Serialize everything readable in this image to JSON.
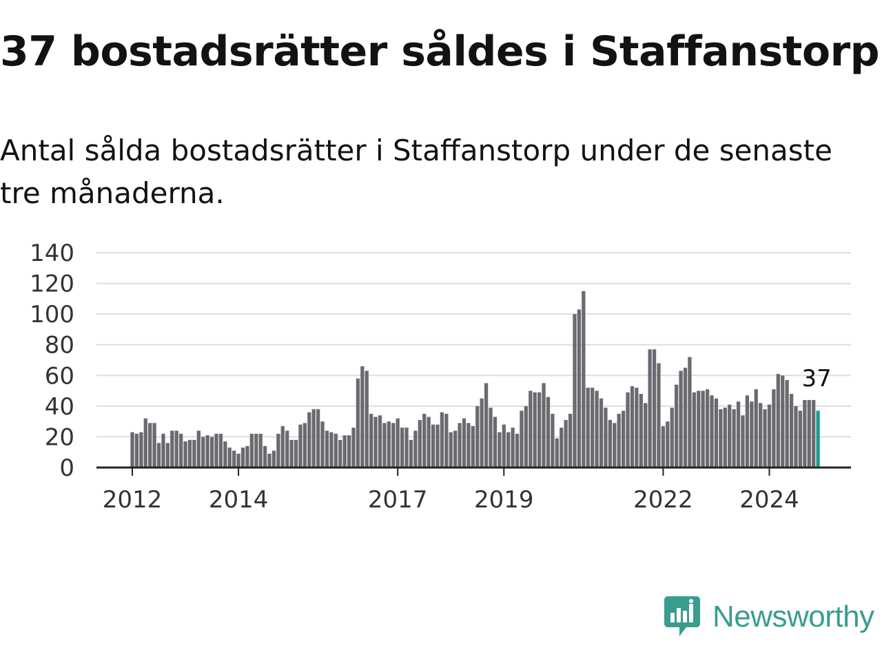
{
  "title": "37 bostadsrätter såldes i Staffanstorp",
  "subtitle": "Antal sålda bostadsrätter i Staffanstorp under de senaste tre månaderna.",
  "brand": {
    "name": "Newsworthy",
    "color": "#3a9c8f"
  },
  "colors": {
    "bar": "#6b6a70",
    "highlight": "#1a9e8f",
    "grid": "#dddddd",
    "axis": "#222222"
  },
  "chart_data": {
    "type": "bar",
    "ylim": [
      0,
      140
    ],
    "yticks": [
      0,
      20,
      40,
      60,
      80,
      100,
      120,
      140
    ],
    "xtick_labels": [
      {
        "label": "2012",
        "index": 0
      },
      {
        "label": "2014",
        "index": 24
      },
      {
        "label": "2017",
        "index": 60
      },
      {
        "label": "2019",
        "index": 84
      },
      {
        "label": "2022",
        "index": 120
      },
      {
        "label": "2024",
        "index": 144
      }
    ],
    "values": [
      23,
      22,
      23,
      32,
      29,
      29,
      16,
      22,
      16,
      24,
      24,
      22,
      17,
      18,
      18,
      24,
      20,
      21,
      20,
      22,
      22,
      17,
      13,
      11,
      9,
      13,
      14,
      22,
      22,
      22,
      14,
      9,
      11,
      22,
      27,
      24,
      18,
      18,
      28,
      29,
      36,
      38,
      38,
      30,
      24,
      23,
      22,
      18,
      21,
      21,
      26,
      58,
      66,
      63,
      35,
      33,
      34,
      29,
      30,
      29,
      32,
      26,
      26,
      18,
      24,
      31,
      35,
      33,
      28,
      28,
      36,
      35,
      23,
      24,
      29,
      32,
      29,
      27,
      40,
      45,
      55,
      39,
      33,
      23,
      28,
      23,
      26,
      22,
      37,
      40,
      50,
      49,
      49,
      55,
      46,
      35,
      19,
      26,
      31,
      35,
      100,
      103,
      115,
      52,
      52,
      50,
      45,
      39,
      31,
      29,
      35,
      37,
      49,
      53,
      52,
      48,
      42,
      77,
      77,
      68,
      27,
      30,
      39,
      54,
      63,
      65,
      72,
      49,
      50,
      50,
      51,
      47,
      45,
      38,
      39,
      41,
      38,
      43,
      34,
      47,
      43,
      51,
      42,
      38,
      41,
      51,
      61,
      60,
      57,
      48,
      40,
      37,
      44,
      44,
      44,
      37
    ],
    "highlight_label": "37"
  }
}
